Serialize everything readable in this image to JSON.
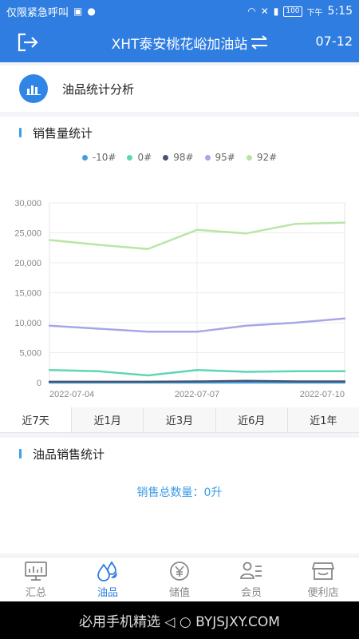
{
  "status": {
    "left_text": "仅限紧急呼叫",
    "battery": "100",
    "period": "下午",
    "time": "5:15"
  },
  "header": {
    "title": "XHT泰安桃花峪加油站",
    "date": "07-12"
  },
  "card": {
    "label": "油品统计分析"
  },
  "sales_section": {
    "title": "销售量统计"
  },
  "product_section": {
    "title": "油品销售统计",
    "total": "销售总数量：0升"
  },
  "tabs": [
    "近7天",
    "近1月",
    "近3月",
    "近6月",
    "近1年"
  ],
  "nav": [
    {
      "label": "汇总",
      "icon": "monitor-icon"
    },
    {
      "label": "油品",
      "icon": "drops-icon"
    },
    {
      "label": "储值",
      "icon": "yen-coin-icon"
    },
    {
      "label": "会员",
      "icon": "member-card-icon"
    },
    {
      "label": "便利店",
      "icon": "store-icon"
    }
  ],
  "watermark": "必用手机精选 ◁ ○ BYJSJXY.COM",
  "chart_data": {
    "type": "line",
    "x": [
      "2022-07-04",
      "2022-07-05",
      "2022-07-06",
      "2022-07-07",
      "2022-07-08",
      "2022-07-09",
      "2022-07-10"
    ],
    "x_tick_labels": [
      "2022-07-04",
      "2022-07-07",
      "2022-07-10"
    ],
    "y_tick_labels": [
      "30,000",
      "25,000",
      "20,000",
      "15,000",
      "10,000",
      "5,000",
      "0"
    ],
    "ylim": [
      0,
      30000
    ],
    "grid": true,
    "legend_position": "top-center",
    "series": [
      {
        "name": "-10#",
        "color": "#3fa0e0",
        "values": [
          0,
          0,
          0,
          0,
          0,
          0,
          0
        ]
      },
      {
        "name": "0#",
        "color": "#5ed6b4",
        "values": [
          2100,
          1900,
          1200,
          2100,
          1800,
          1900,
          1900
        ]
      },
      {
        "name": "98#",
        "color": "#485470",
        "values": [
          150,
          150,
          150,
          200,
          300,
          200,
          200
        ]
      },
      {
        "name": "95#",
        "color": "#a6a6e6",
        "values": [
          9500,
          9000,
          8500,
          8500,
          9500,
          10000,
          10700
        ]
      },
      {
        "name": "92#",
        "color": "#b7e5a4",
        "values": [
          23800,
          23000,
          22300,
          25500,
          24900,
          26500,
          26700
        ]
      }
    ]
  }
}
